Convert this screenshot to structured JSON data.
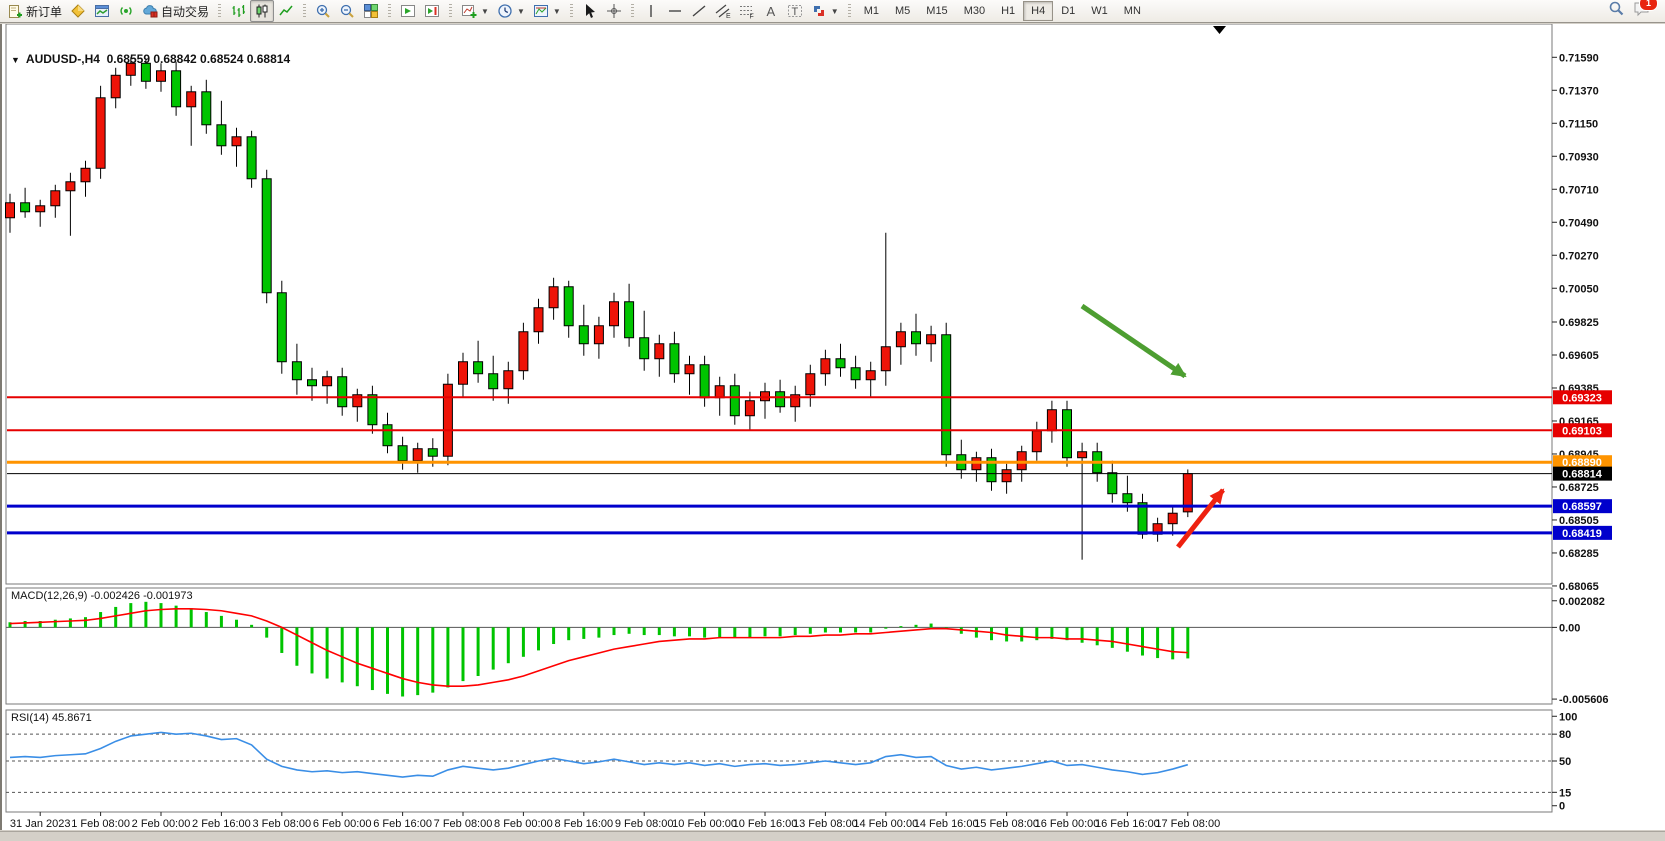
{
  "toolbar": {
    "new_order_label": "新订单",
    "auto_trading_label": "自动交易",
    "timeframes": [
      "M1",
      "M5",
      "M15",
      "M30",
      "H1",
      "H4",
      "D1",
      "W1",
      "MN"
    ],
    "active_timeframe": "H4",
    "notification_badge": "1"
  },
  "chart_header": {
    "marker": "▼",
    "symbol": "AUDUSD-,H4",
    "ohlc_text": "0.68559 0.68842 0.68524 0.68814"
  },
  "indicator_labels": {
    "macd": "MACD(12,26,9) -0.002426 -0.001973",
    "rsi": "RSI(14) 45.8671"
  },
  "chart_data": {
    "type": "candlestick",
    "symbol": "AUDUSD-",
    "timeframe": "H4",
    "note": "red = bullish, green = bearish (Chinese convention)",
    "bull_color": "#ee1408",
    "bear_color": "#00c400",
    "current_ohlc": {
      "open": 0.68559,
      "high": 0.68842,
      "low": 0.68524,
      "close": 0.68814
    },
    "candles": [
      [
        0.7052,
        0.7068,
        0.7042,
        0.7062
      ],
      [
        0.7062,
        0.7072,
        0.7052,
        0.7056
      ],
      [
        0.7056,
        0.7064,
        0.7046,
        0.706
      ],
      [
        0.706,
        0.7074,
        0.7052,
        0.707
      ],
      [
        0.707,
        0.7082,
        0.704,
        0.7076
      ],
      [
        0.7076,
        0.709,
        0.7066,
        0.7085
      ],
      [
        0.7085,
        0.714,
        0.7078,
        0.7132
      ],
      [
        0.7132,
        0.7152,
        0.7125,
        0.7147
      ],
      [
        0.7147,
        0.7159,
        0.714,
        0.7155
      ],
      [
        0.7155,
        0.7158,
        0.7138,
        0.7143
      ],
      [
        0.7143,
        0.7155,
        0.7136,
        0.715
      ],
      [
        0.715,
        0.7156,
        0.712,
        0.7126
      ],
      [
        0.7126,
        0.714,
        0.71,
        0.7136
      ],
      [
        0.7136,
        0.7144,
        0.7108,
        0.7114
      ],
      [
        0.7114,
        0.713,
        0.7094,
        0.71
      ],
      [
        0.71,
        0.7112,
        0.7086,
        0.7106
      ],
      [
        0.7106,
        0.711,
        0.7072,
        0.7078
      ],
      [
        0.7078,
        0.7084,
        0.6995,
        0.7002
      ],
      [
        0.7002,
        0.701,
        0.6948,
        0.6956
      ],
      [
        0.6956,
        0.6968,
        0.6934,
        0.6944
      ],
      [
        0.6944,
        0.6952,
        0.693,
        0.694
      ],
      [
        0.694,
        0.695,
        0.6928,
        0.6946
      ],
      [
        0.6946,
        0.6952,
        0.692,
        0.6926
      ],
      [
        0.6926,
        0.6938,
        0.6916,
        0.6934
      ],
      [
        0.6934,
        0.694,
        0.6908,
        0.6914
      ],
      [
        0.6914,
        0.6922,
        0.6895,
        0.69
      ],
      [
        0.69,
        0.6906,
        0.6884,
        0.689
      ],
      [
        0.689,
        0.6902,
        0.6882,
        0.6898
      ],
      [
        0.6898,
        0.6905,
        0.6886,
        0.6893
      ],
      [
        0.6893,
        0.6948,
        0.6887,
        0.6941
      ],
      [
        0.6941,
        0.6962,
        0.6932,
        0.6956
      ],
      [
        0.6956,
        0.697,
        0.6942,
        0.6948
      ],
      [
        0.6948,
        0.696,
        0.693,
        0.6938
      ],
      [
        0.6938,
        0.6956,
        0.6928,
        0.695
      ],
      [
        0.695,
        0.6982,
        0.6944,
        0.6976
      ],
      [
        0.6976,
        0.6998,
        0.6968,
        0.6992
      ],
      [
        0.6992,
        0.7012,
        0.6984,
        0.7006
      ],
      [
        0.7006,
        0.701,
        0.6972,
        0.698
      ],
      [
        0.698,
        0.6994,
        0.696,
        0.6968
      ],
      [
        0.6968,
        0.6986,
        0.6958,
        0.698
      ],
      [
        0.698,
        0.7002,
        0.6972,
        0.6996
      ],
      [
        0.6996,
        0.7008,
        0.6966,
        0.6972
      ],
      [
        0.6972,
        0.699,
        0.695,
        0.6958
      ],
      [
        0.6958,
        0.6974,
        0.6946,
        0.6968
      ],
      [
        0.6968,
        0.6976,
        0.6942,
        0.6948
      ],
      [
        0.6948,
        0.696,
        0.6934,
        0.6954
      ],
      [
        0.6954,
        0.696,
        0.6926,
        0.6932
      ],
      [
        0.6932,
        0.6946,
        0.692,
        0.694
      ],
      [
        0.694,
        0.6948,
        0.6914,
        0.692
      ],
      [
        0.692,
        0.6936,
        0.691,
        0.693
      ],
      [
        0.693,
        0.6942,
        0.6918,
        0.6936
      ],
      [
        0.6936,
        0.6944,
        0.6922,
        0.6926
      ],
      [
        0.6926,
        0.694,
        0.6916,
        0.6934
      ],
      [
        0.6934,
        0.6954,
        0.6926,
        0.6948
      ],
      [
        0.6948,
        0.6964,
        0.694,
        0.6958
      ],
      [
        0.6958,
        0.6968,
        0.6946,
        0.6952
      ],
      [
        0.6952,
        0.696,
        0.6938,
        0.6944
      ],
      [
        0.6944,
        0.6956,
        0.6932,
        0.695
      ],
      [
        0.695,
        0.7042,
        0.694,
        0.6966
      ],
      [
        0.6966,
        0.6982,
        0.6954,
        0.6976
      ],
      [
        0.6976,
        0.6988,
        0.696,
        0.6968
      ],
      [
        0.6968,
        0.698,
        0.6956,
        0.6974
      ],
      [
        0.6974,
        0.6982,
        0.6886,
        0.6894
      ],
      [
        0.6894,
        0.6904,
        0.6878,
        0.6884
      ],
      [
        0.6884,
        0.6896,
        0.6876,
        0.6892
      ],
      [
        0.6892,
        0.6898,
        0.687,
        0.6876
      ],
      [
        0.6876,
        0.6888,
        0.6868,
        0.6884
      ],
      [
        0.6884,
        0.69,
        0.6876,
        0.6896
      ],
      [
        0.6896,
        0.6916,
        0.689,
        0.691
      ],
      [
        0.691,
        0.693,
        0.6902,
        0.6924
      ],
      [
        0.6924,
        0.693,
        0.6886,
        0.6892
      ],
      [
        0.6892,
        0.6902,
        0.6824,
        0.6896
      ],
      [
        0.6896,
        0.6902,
        0.6876,
        0.6882
      ],
      [
        0.6882,
        0.689,
        0.6862,
        0.6868
      ],
      [
        0.6868,
        0.688,
        0.6856,
        0.6862
      ],
      [
        0.6862,
        0.6868,
        0.6838,
        0.6841
      ],
      [
        0.6841,
        0.6852,
        0.6836,
        0.6848
      ],
      [
        0.6848,
        0.686,
        0.684,
        0.6855
      ],
      [
        0.68559,
        0.68842,
        0.68524,
        0.68814
      ]
    ],
    "price_axis": {
      "ticks": [
        "0.71590",
        "0.71370",
        "0.71150",
        "0.70930",
        "0.70710",
        "0.70490",
        "0.70270",
        "0.70050",
        "0.69825",
        "0.69605",
        "0.69385",
        "0.69165",
        "0.68945",
        "0.68725",
        "0.68505",
        "0.68285",
        "0.68065"
      ]
    },
    "hlines": [
      {
        "price": 0.69323,
        "label": "0.69323",
        "color": "#e60000",
        "width": 2
      },
      {
        "price": 0.69103,
        "label": "0.69103",
        "color": "#e60000",
        "width": 2
      },
      {
        "price": 0.6889,
        "label": "0.68890",
        "color": "#ff9400",
        "width": 3
      },
      {
        "price": 0.68814,
        "label": "0.68814",
        "color": "#000000",
        "width": 1
      },
      {
        "price": 0.68597,
        "label": "0.68597",
        "color": "#0000cc",
        "width": 3
      },
      {
        "price": 0.68419,
        "label": "0.68419",
        "color": "#0000cc",
        "width": 3
      }
    ],
    "time_axis": {
      "labels": [
        "31 Jan 2023",
        "1 Feb 08:00",
        "2 Feb 00:00",
        "2 Feb 16:00",
        "3 Feb 08:00",
        "6 Feb 00:00",
        "6 Feb 16:00",
        "7 Feb 08:00",
        "8 Feb 00:00",
        "8 Feb 16:00",
        "9 Feb 08:00",
        "10 Feb 00:00",
        "10 Feb 16:00",
        "13 Feb 08:00",
        "14 Feb 00:00",
        "14 Feb 16:00",
        "15 Feb 08:00",
        "16 Feb 00:00",
        "16 Feb 16:00",
        "17 Feb 08:00"
      ],
      "label_candle_start": 2,
      "label_candle_step": 4
    },
    "macd": {
      "title": "MACD(12,26,9)",
      "value": -0.002426,
      "signal_value": -0.001973,
      "histogram_color": "#00c400",
      "signal_color": "#ff0000",
      "yticks": [
        {
          "v": 0.002082,
          "label": "0.002082"
        },
        {
          "v": 0,
          "label": "0.00"
        },
        {
          "v": -0.005606,
          "label": "-0.005606"
        }
      ],
      "histogram": [
        0.0004,
        0.0005,
        0.0005,
        0.0006,
        0.0007,
        0.0008,
        0.0012,
        0.0016,
        0.0019,
        0.002,
        0.0019,
        0.0017,
        0.0015,
        0.0012,
        0.0009,
        0.0006,
        0.0002,
        -0.0008,
        -0.002,
        -0.003,
        -0.0036,
        -0.004,
        -0.0043,
        -0.0046,
        -0.0049,
        -0.0052,
        -0.0054,
        -0.0053,
        -0.0051,
        -0.0047,
        -0.0042,
        -0.0038,
        -0.0033,
        -0.0028,
        -0.0023,
        -0.0018,
        -0.0013,
        -0.001,
        -0.0009,
        -0.0008,
        -0.0006,
        -0.0005,
        -0.0006,
        -0.0006,
        -0.0007,
        -0.0007,
        -0.0008,
        -0.0008,
        -0.0008,
        -0.0008,
        -0.0007,
        -0.0007,
        -0.0006,
        -0.0005,
        -0.0004,
        -0.0004,
        -0.0004,
        -0.0004,
        -0.0001,
        0.0001,
        0.0002,
        0.0003,
        -0.0001,
        -0.0005,
        -0.0008,
        -0.001,
        -0.0011,
        -0.0011,
        -0.001,
        -0.0009,
        -0.001,
        -0.0012,
        -0.0014,
        -0.0016,
        -0.0019,
        -0.0022,
        -0.0024,
        -0.0025,
        -0.002426
      ],
      "signal": [
        0.0003,
        0.00035,
        0.0004,
        0.00045,
        0.0005,
        0.00055,
        0.0007,
        0.0009,
        0.0011,
        0.0013,
        0.0014,
        0.00145,
        0.00145,
        0.0014,
        0.0013,
        0.0011,
        0.0009,
        0.0005,
        0.0,
        -0.0006,
        -0.0012,
        -0.0018,
        -0.0023,
        -0.0028,
        -0.0032,
        -0.0036,
        -0.004,
        -0.0043,
        -0.0045,
        -0.0046,
        -0.0046,
        -0.0045,
        -0.0043,
        -0.0041,
        -0.0038,
        -0.0034,
        -0.003,
        -0.0026,
        -0.0023,
        -0.002,
        -0.0017,
        -0.0015,
        -0.0013,
        -0.0011,
        -0.001,
        -0.0009,
        -0.0009,
        -0.0008,
        -0.0008,
        -0.0008,
        -0.0008,
        -0.0008,
        -0.0007,
        -0.0007,
        -0.0006,
        -0.0006,
        -0.0005,
        -0.0005,
        -0.0004,
        -0.0003,
        -0.0002,
        -0.0001,
        -0.0001,
        -0.0002,
        -0.0003,
        -0.0004,
        -0.0006,
        -0.0007,
        -0.0008,
        -0.0008,
        -0.0009,
        -0.0009,
        -0.001,
        -0.0011,
        -0.0013,
        -0.0015,
        -0.0017,
        -0.0019,
        -0.001973
      ]
    },
    "rsi": {
      "title": "RSI(14)",
      "value": 45.8671,
      "line_color": "#3a8ee6",
      "yticks": [
        {
          "v": 100,
          "label": "100"
        },
        {
          "v": 80,
          "label": "80"
        },
        {
          "v": 50,
          "label": "50"
        },
        {
          "v": 15,
          "label": "15"
        },
        {
          "v": 0,
          "label": "0"
        }
      ],
      "levels": [
        80,
        50,
        15
      ],
      "values": [
        54,
        55,
        54,
        56,
        57,
        58,
        64,
        72,
        78,
        80,
        82,
        80,
        81,
        78,
        74,
        75,
        68,
        52,
        44,
        40,
        38,
        39,
        37,
        38,
        36,
        34,
        32,
        34,
        33,
        40,
        44,
        42,
        40,
        42,
        46,
        50,
        53,
        50,
        47,
        49,
        52,
        49,
        46,
        48,
        46,
        48,
        45,
        47,
        44,
        46,
        47,
        45,
        46,
        48,
        50,
        48,
        46,
        48,
        55,
        57,
        54,
        55,
        45,
        41,
        43,
        40,
        42,
        44,
        47,
        50,
        45,
        46,
        43,
        40,
        38,
        35,
        37,
        41,
        45.8671
      ]
    },
    "annotations": [
      {
        "type": "arrow",
        "direction": "down-right",
        "color": "#4d9e31",
        "from": [
          1080,
          306
        ],
        "to": [
          1183,
          376
        ]
      },
      {
        "type": "arrow",
        "direction": "up-right",
        "color": "#ee2110",
        "from": [
          1176,
          547
        ],
        "to": [
          1221,
          490
        ]
      }
    ]
  }
}
